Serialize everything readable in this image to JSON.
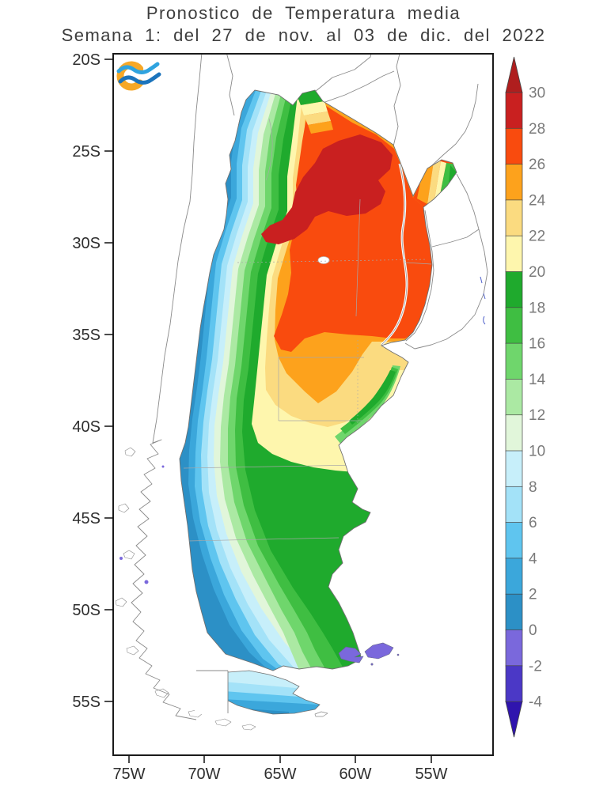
{
  "title": {
    "line1": "Pronostico de Temperatura media",
    "line2": "Semana 1: del 27 de nov. al 03 de dic. del 2022"
  },
  "axes": {
    "y_labels": [
      "20S",
      "25S",
      "30S",
      "35S",
      "40S",
      "45S",
      "50S",
      "55S"
    ],
    "x_labels": [
      "75W",
      "70W",
      "65W",
      "60W",
      "55W"
    ]
  },
  "colorbar": {
    "labels": [
      "30",
      "28",
      "26",
      "24",
      "22",
      "20",
      "18",
      "16",
      "14",
      "12",
      "10",
      "8",
      "6",
      "4",
      "2",
      "0",
      "-2",
      "-4"
    ],
    "bands": [
      {
        "key": "gt30",
        "range": "> 30",
        "color": "#AF1E1E"
      },
      {
        "key": "28-30",
        "range": "28 a 30",
        "color": "#C92020"
      },
      {
        "key": "26-28",
        "range": "26 a 28",
        "color": "#F94B0E"
      },
      {
        "key": "24-26",
        "range": "24 a 26",
        "color": "#FDA21C"
      },
      {
        "key": "22-24",
        "range": "22 a 24",
        "color": "#FBDB80"
      },
      {
        "key": "20-22",
        "range": "20 a 22",
        "color": "#FEF6AD"
      },
      {
        "key": "18-20",
        "range": "18 a 20",
        "color": "#1FAA2D"
      },
      {
        "key": "16-18",
        "range": "16 a 18",
        "color": "#3FBE42"
      },
      {
        "key": "14-16",
        "range": "14 a 16",
        "color": "#6FD66C"
      },
      {
        "key": "12-14",
        "range": "12 a 14",
        "color": "#ABE9A3"
      },
      {
        "key": "10-12",
        "range": "10 a 12",
        "color": "#E1F6DA"
      },
      {
        "key": "8-10",
        "range": "8 a 10",
        "color": "#C7EFFA"
      },
      {
        "key": "6-8",
        "range": "6 a 8",
        "color": "#A3E2F8"
      },
      {
        "key": "4-6",
        "range": "4 a 6",
        "color": "#5FC5EF"
      },
      {
        "key": "2-4",
        "range": "2 a 4",
        "color": "#3BA7DB"
      },
      {
        "key": "0-2",
        "range": "0 a 2",
        "color": "#2C90C6"
      },
      {
        "key": "-2-0",
        "range": "-2 a 0",
        "color": "#7A68DC"
      },
      {
        "key": "-4--2",
        "range": "-4 a -2",
        "color": "#4B38C6"
      },
      {
        "key": "lt-4",
        "range": "< -4",
        "color": "#2F14AE"
      }
    ]
  },
  "logo": {
    "name": "SMN Argentina logo",
    "ring_color": "#F7A827",
    "wave_top_color": "#2FA3DF",
    "wave_bottom_color": "#1C74BC"
  },
  "map": {
    "region": "Argentina",
    "lat_range": [
      "20S",
      "55S"
    ],
    "lon_range": [
      "75W",
      "55W"
    ],
    "hottest_area_band": "28-30",
    "malvinas_band": "-2-0",
    "frame_color": "#1a1a1a"
  }
}
